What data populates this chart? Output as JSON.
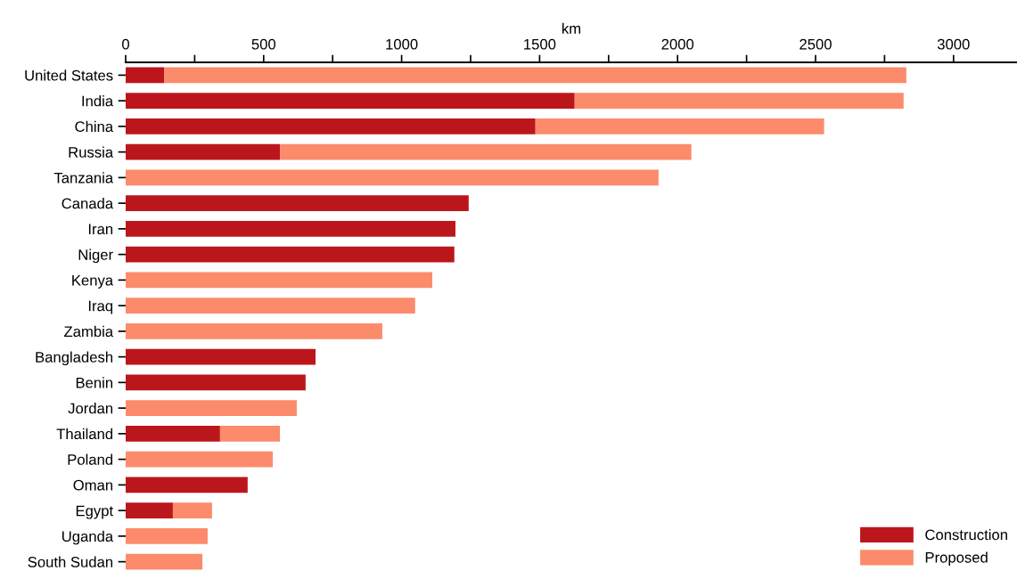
{
  "chart_data": {
    "type": "bar",
    "orientation": "horizontal",
    "stacked": true,
    "xlabel": "km",
    "categories": [
      "United States",
      "India",
      "China",
      "Russia",
      "Tanzania",
      "Canada",
      "Iran",
      "Niger",
      "Kenya",
      "Iraq",
      "Zambia",
      "Bangladesh",
      "Benin",
      "Jordan",
      "Thailand",
      "Poland",
      "Oman",
      "Egypt",
      "Uganda",
      "South Sudan"
    ],
    "series": [
      {
        "name": "Construction",
        "color": "#bc161d",
        "values": [
          139,
          1627,
          1485,
          559,
          0,
          1243,
          1195,
          1191,
          0,
          0,
          0,
          688,
          652,
          0,
          342,
          0,
          442,
          171,
          0,
          0
        ]
      },
      {
        "name": "Proposed",
        "color": "#fc8b6b",
        "values": [
          2690,
          1192,
          1046,
          1491,
          1931,
          0,
          0,
          0,
          1111,
          1049,
          930,
          0,
          0,
          620,
          217,
          533,
          0,
          142,
          297,
          278
        ]
      }
    ],
    "xlim": [
      0,
      3230
    ],
    "xticks": [
      0,
      {
        "value": 250,
        "label": null
      },
      500,
      {
        "value": 750,
        "label": null
      },
      1000,
      {
        "value": 1250,
        "label": null
      },
      1500,
      {
        "value": 1750,
        "label": null
      },
      2000,
      {
        "value": 2250,
        "label": null
      },
      2500,
      {
        "value": 2750,
        "label": null
      },
      3000
    ],
    "grid": false,
    "legend": "bottom right"
  }
}
